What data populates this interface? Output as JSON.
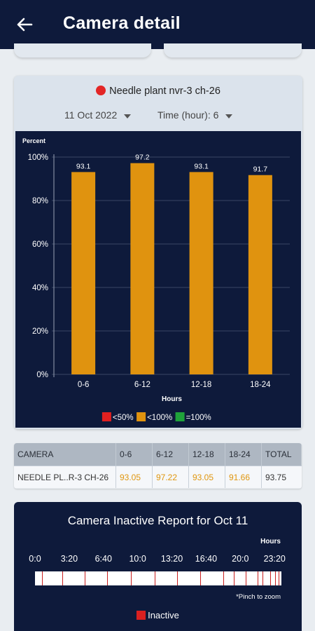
{
  "header": {
    "title": "Camera detail",
    "back_icon": "arrow-left-icon"
  },
  "camera": {
    "name": "Needle plant nvr-3 ch-26",
    "status_color": "#e32626"
  },
  "filters": {
    "date": "11 Oct 2022",
    "time": "Time (hour): 6"
  },
  "colors": {
    "accent": "#0e1a3b",
    "bar": "#e0930f",
    "lt50": "#e02020",
    "lt100": "#e0930f",
    "eq100": "#1fa33a"
  },
  "chart_data": {
    "type": "bar",
    "categories": [
      "0-6",
      "6-12",
      "12-18",
      "18-24"
    ],
    "values": [
      93.1,
      97.2,
      93.1,
      91.7
    ],
    "data_labels": [
      "93.1",
      "97.2",
      "93.1",
      "91.7"
    ],
    "ylabel": "Percent",
    "xlabel": "Hours",
    "ylim": [
      0,
      100
    ],
    "yticks": [
      "0%",
      "20%",
      "40%",
      "60%",
      "80%",
      "100%"
    ],
    "grid": true,
    "legend": [
      {
        "label": "<50%",
        "color": "#e02020"
      },
      {
        "label": "<100%",
        "color": "#e0930f"
      },
      {
        "label": "=100%",
        "color": "#1fa33a"
      }
    ],
    "legend_position": "bottom"
  },
  "table": {
    "headers": [
      "CAMERA",
      "0-6",
      "6-12",
      "12-18",
      "18-24",
      "TOTAL"
    ],
    "rows": [
      [
        "NEEDLE PL..R-3 CH-26",
        "93.05",
        "97.22",
        "93.05",
        "91.66",
        "93.75"
      ]
    ]
  },
  "inactive_report": {
    "title": "Camera Inactive Report for Oct 11",
    "hours_label": "Hours",
    "ticks": [
      "0:0",
      "3:20",
      "6:40",
      "10:0",
      "13:20",
      "16:40",
      "20:0",
      "23:20"
    ],
    "inactive_minutes": [
      40,
      160,
      290,
      420,
      560,
      700,
      830,
      965,
      1100,
      1160,
      1230,
      1300,
      1330,
      1375,
      1405,
      1425
    ],
    "pinch_note": "*Pinch to zoom",
    "legend_label": "Inactive"
  }
}
